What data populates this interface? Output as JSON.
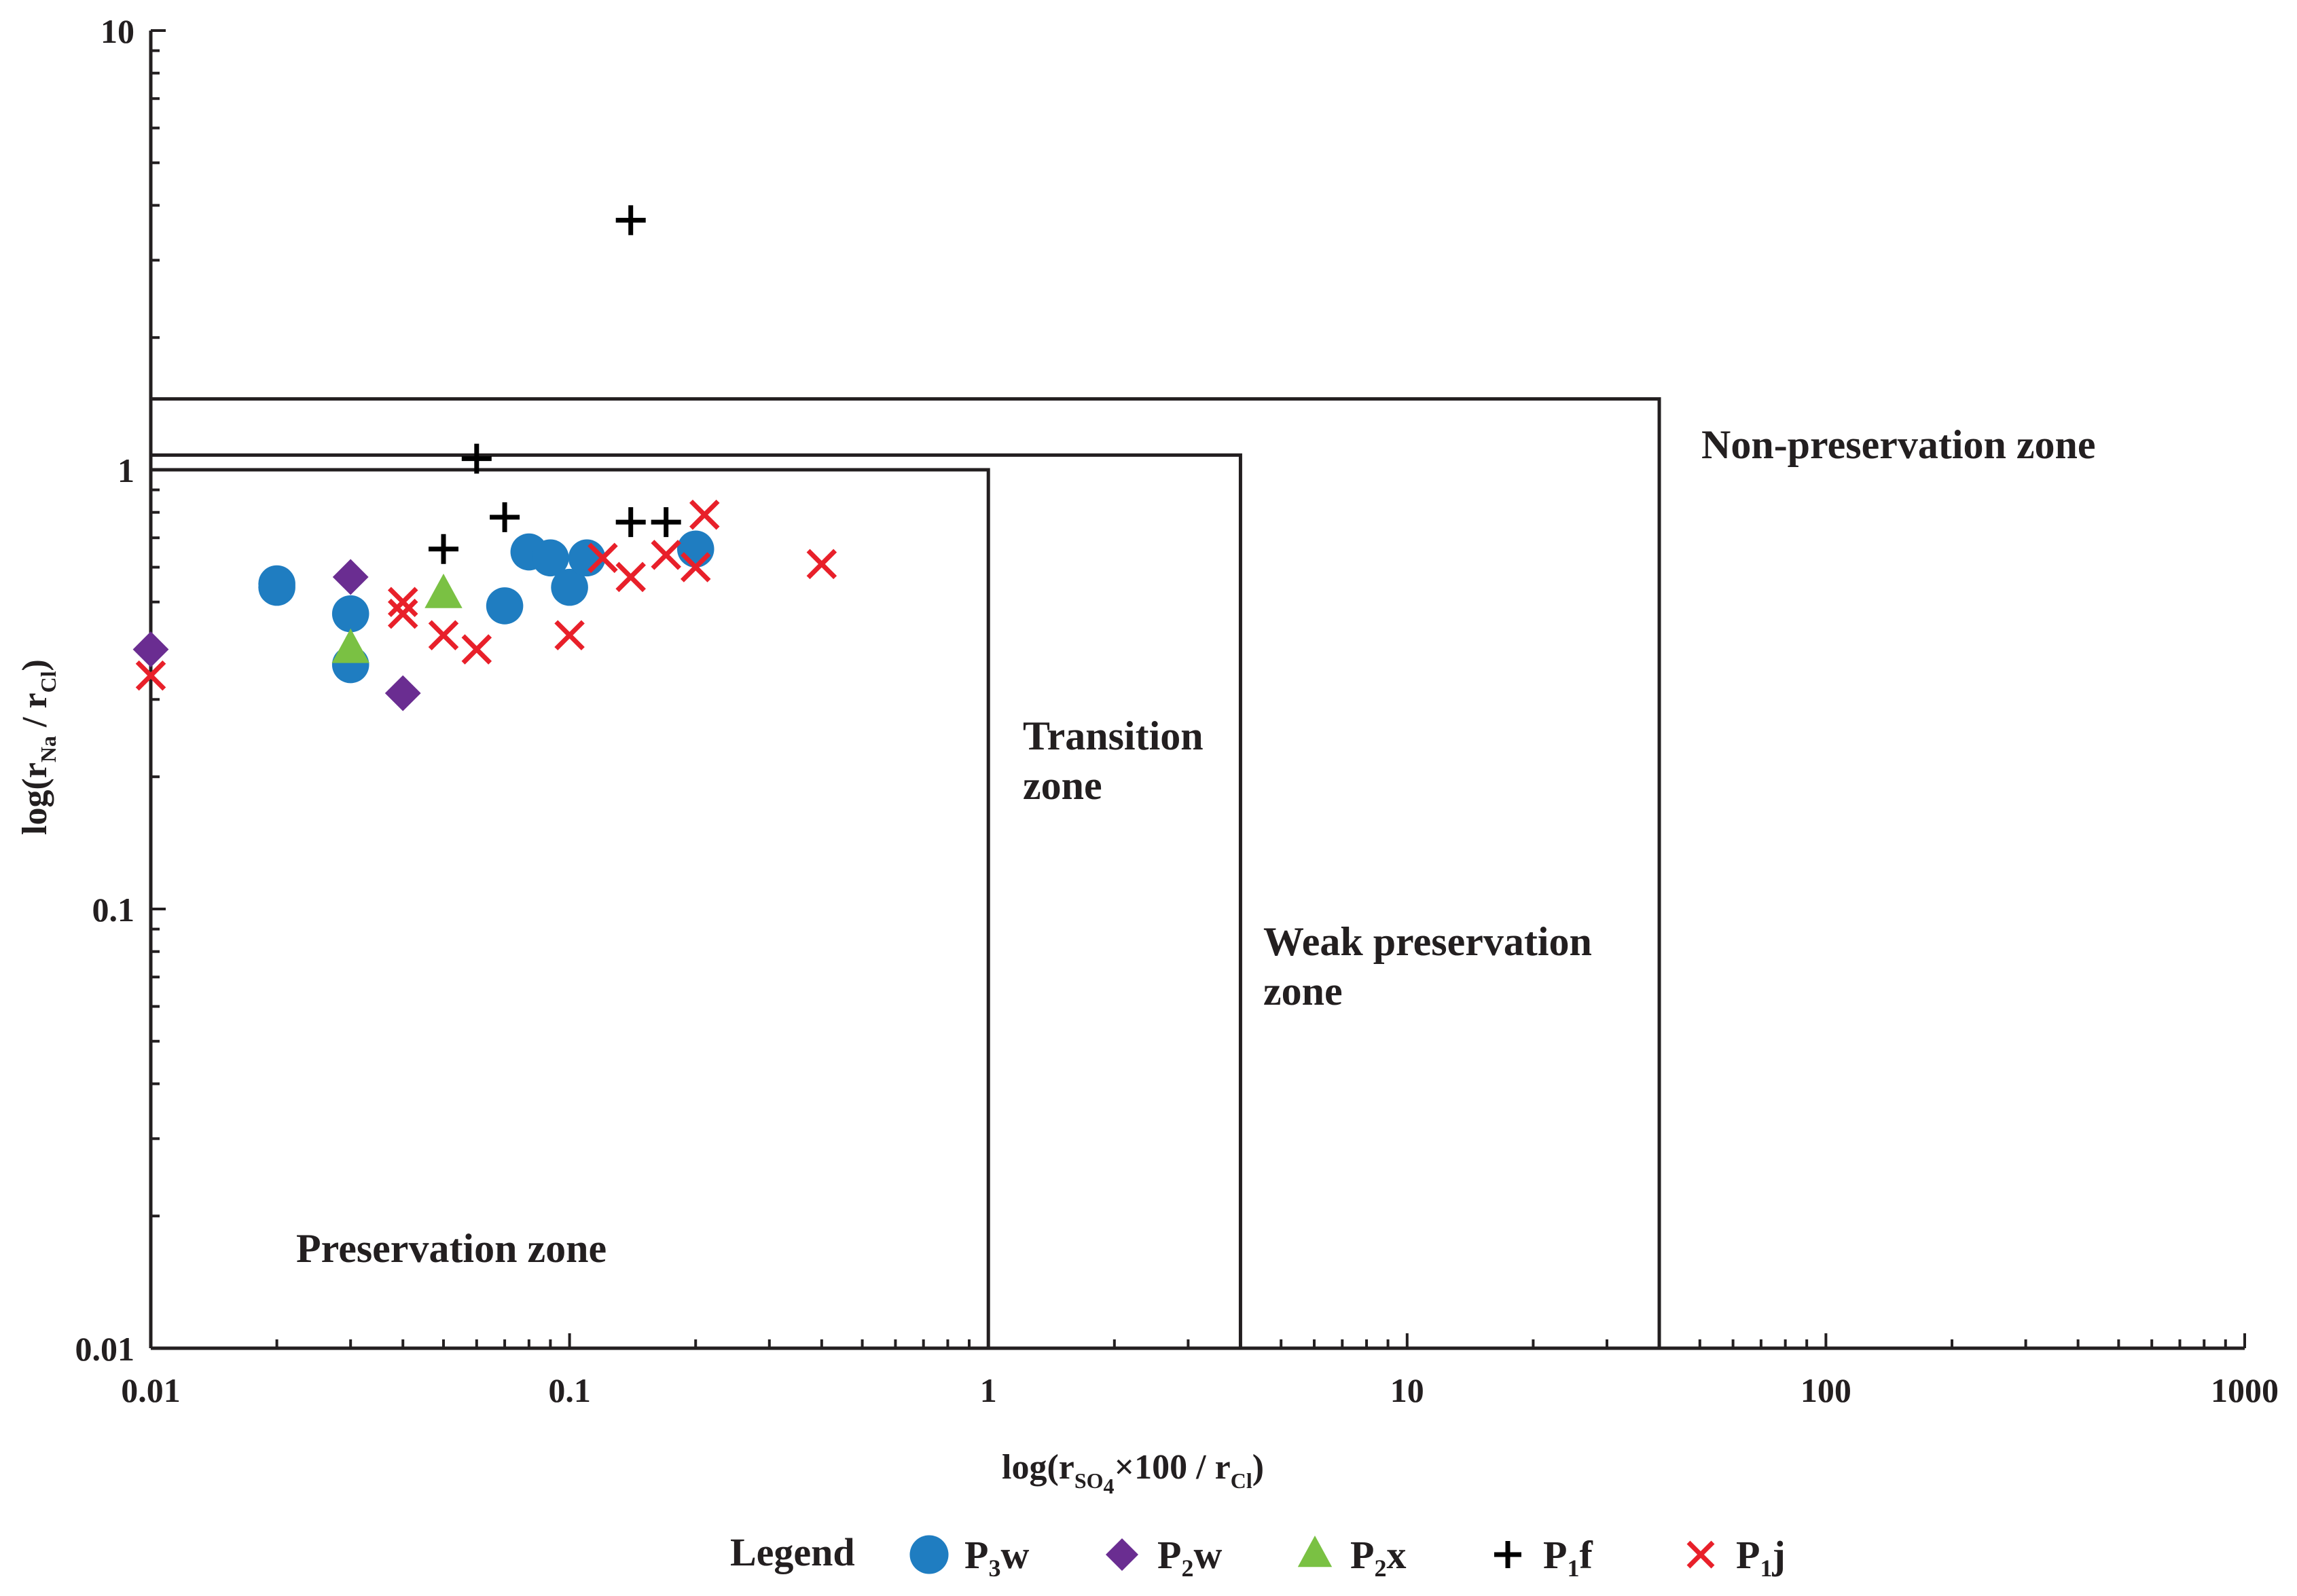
{
  "chart_data": {
    "type": "scatter",
    "x_scale": "log",
    "y_scale": "log",
    "xlim": [
      0.01,
      1000
    ],
    "ylim": [
      0.01,
      10
    ],
    "x_ticks": [
      "0.01",
      "0.1",
      "1",
      "10",
      "100",
      "1000"
    ],
    "y_ticks": [
      "0.01",
      "0.1",
      "1",
      "10"
    ],
    "xlabel": {
      "prefix": "log(r",
      "sub1": "SO",
      "sub2": "4",
      "mid": "×100 / r",
      "sub3": "Cl",
      "suffix": ")"
    },
    "ylabel": {
      "prefix": "log(r",
      "sub1": "Na",
      "mid": " / r",
      "sub2": "Cl",
      "suffix": ")"
    },
    "zones": [
      {
        "name": "Preservation zone",
        "x_max": 1,
        "y_max": 1
      },
      {
        "name": "Transition zone",
        "x_max": 4,
        "y_max": 1.08
      },
      {
        "name": "Weak preservation zone",
        "x_max": 40,
        "y_max": 1.45
      },
      {
        "name": "Non-preservation zone"
      }
    ],
    "zone_labels": {
      "preservation": "Preservation zone",
      "transition_1": "Transition",
      "transition_2": "zone",
      "weak_1": "Weak preservation",
      "weak_2": "zone",
      "non_preservation": "Non-preservation zone"
    },
    "legend_title": "Legend",
    "series": [
      {
        "name": "P3w",
        "base": "P",
        "sub": "3",
        "suffix": "w",
        "marker": "circle",
        "color": "#1f7dc1",
        "x": [
          0.02,
          0.02,
          0.03,
          0.03,
          0.07,
          0.08,
          0.09,
          0.1,
          0.11,
          0.2
        ],
        "y": [
          0.55,
          0.54,
          0.47,
          0.36,
          0.49,
          0.65,
          0.63,
          0.54,
          0.63,
          0.66
        ]
      },
      {
        "name": "P2w",
        "base": "P",
        "sub": "2",
        "suffix": "w",
        "marker": "diamond",
        "color": "#6a2d91",
        "x": [
          0.01,
          0.03,
          0.04
        ],
        "y": [
          0.39,
          0.57,
          0.31
        ]
      },
      {
        "name": "P2x",
        "base": "P",
        "sub": "2",
        "suffix": "x",
        "marker": "triangle",
        "color": "#7ac143",
        "x": [
          0.03,
          0.05
        ],
        "y": [
          0.39,
          0.52
        ]
      },
      {
        "name": "P1f",
        "base": "P",
        "sub": "1",
        "suffix": "f",
        "marker": "plus",
        "color": "#000000",
        "x": [
          0.14,
          0.06,
          0.07,
          0.05,
          0.14,
          0.17
        ],
        "y": [
          3.7,
          1.06,
          0.78,
          0.66,
          0.76,
          0.76
        ]
      },
      {
        "name": "P1j",
        "base": "P",
        "sub": "1",
        "suffix": "j",
        "marker": "cross",
        "color": "#e8202a",
        "x": [
          0.01,
          0.04,
          0.04,
          0.05,
          0.06,
          0.1,
          0.12,
          0.14,
          0.17,
          0.2,
          0.21,
          0.4
        ],
        "y": [
          0.34,
          0.5,
          0.47,
          0.42,
          0.39,
          0.42,
          0.63,
          0.57,
          0.64,
          0.6,
          0.79,
          0.61
        ]
      }
    ]
  }
}
